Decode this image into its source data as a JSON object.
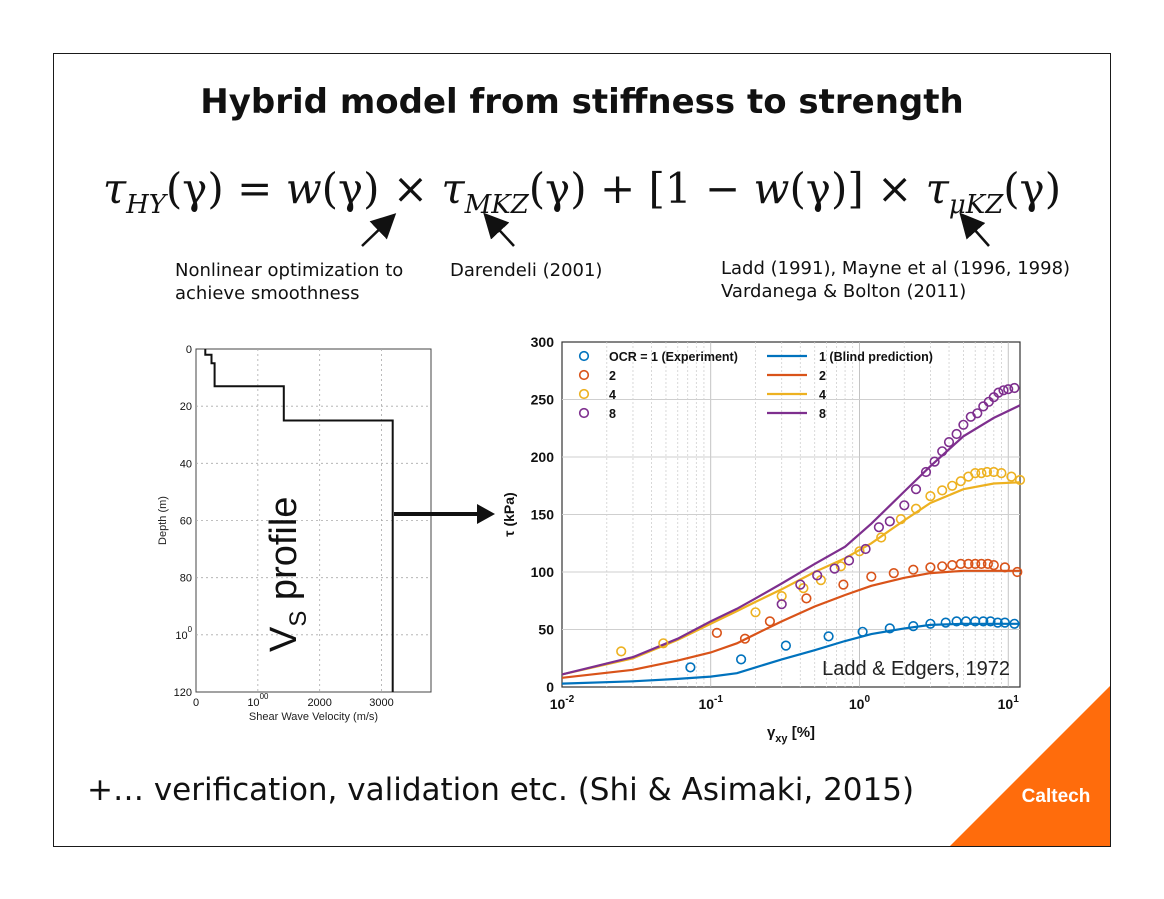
{
  "title": "Hybrid model from stiffness to strength",
  "equation": {
    "lhs": "τ",
    "lhs_sub": "HY",
    "lhs_arg": "(γ) = ",
    "w1": "w",
    "w1_arg": "(γ) × ",
    "tau2": "τ",
    "tau2_sub": "MKZ",
    "tau2_arg": "(γ) + [1 − ",
    "w2": "w",
    "w2_arg": "(γ)] × ",
    "tau3": "τ",
    "tau3_sub": "μKZ",
    "tau3_arg": "(γ)"
  },
  "notes": {
    "optimization_line1": "Nonlinear optimization to",
    "optimization_line2": "achieve smoothness",
    "darendeli": "Darendeli (2001)",
    "ladd_line1": "Ladd (1991), Mayne et al (1996, 1998)",
    "ladd_line2": "Vardanega & Bolton (2011)"
  },
  "footer": "+… verification, validation etc. (Shi & Asimaki, 2015)",
  "brand": {
    "label": "Caltech",
    "color": "#FF6C0C"
  },
  "vs_profile": {
    "overlay_main": "V",
    "overlay_sub": "S",
    "overlay_rest": " profile"
  },
  "chart_data": [
    {
      "type": "line",
      "xlabel": "Shear Wave Velocity (m/s)",
      "ylabel": "Depth (m)",
      "xlim": [
        0,
        3800
      ],
      "ylim": [
        0,
        120
      ],
      "y_inverted": true,
      "xticks": [
        "0",
        "1000",
        "2000",
        "3000"
      ],
      "yticks": [
        "0",
        "20",
        "40",
        "60",
        "80",
        "100",
        "120"
      ],
      "grid": true,
      "series": [
        {
          "x": [
            150,
            150,
            250,
            250,
            300,
            300,
            1420,
            1420,
            3180,
            3180
          ],
          "y": [
            0,
            2,
            2,
            5,
            5,
            13,
            13,
            25,
            25,
            120
          ]
        }
      ]
    },
    {
      "type": "scatter+line",
      "xlabel": "γxy [%]",
      "ylabel": "τ (kPa)",
      "x_scale": "log",
      "xlim": [
        0.01,
        12
      ],
      "ylim": [
        0,
        300
      ],
      "xticks": [
        "10-2",
        "10-1",
        "100",
        "101"
      ],
      "yticks": [
        "0",
        "50",
        "100",
        "150",
        "200",
        "250",
        "300"
      ],
      "grid": true,
      "legend_placement": "top-left",
      "annotation": "Ladd & Edgers, 1972",
      "legend": {
        "exp_title": "OCR = 1 (Experiment)",
        "pred_title": "1 (Blind prediction)",
        "labels": [
          "2",
          "4",
          "8"
        ]
      },
      "series": [
        {
          "name": "OCR = 1 (Experiment)",
          "color": "#0072BD",
          "kind": "markers",
          "x": [
            0.073,
            0.16,
            0.32,
            0.62,
            1.05,
            1.6,
            2.3,
            3.0,
            3.8,
            4.5,
            5.2,
            6.0,
            6.8,
            7.6,
            8.5,
            9.5,
            11
          ],
          "y": [
            17,
            24,
            36,
            44,
            48,
            51,
            53,
            55,
            56,
            57,
            57,
            57,
            57,
            57,
            56,
            56,
            55
          ]
        },
        {
          "name": "2",
          "color": "#D95319",
          "kind": "markers",
          "x": [
            0.11,
            0.17,
            0.25,
            0.44,
            0.78,
            1.2,
            1.7,
            2.3,
            3.0,
            3.6,
            4.2,
            4.8,
            5.4,
            6.0,
            6.6,
            7.3,
            8.0,
            9.5,
            11.5
          ],
          "y": [
            47,
            42,
            57,
            77,
            89,
            96,
            99,
            102,
            104,
            105,
            106,
            107,
            107,
            107,
            107,
            107,
            106,
            104,
            100
          ]
        },
        {
          "name": "4",
          "color": "#EDB120",
          "kind": "markers",
          "x": [
            0.025,
            0.048,
            0.2,
            0.3,
            0.42,
            0.55,
            0.75,
            1.0,
            1.4,
            1.9,
            2.4,
            3.0,
            3.6,
            4.2,
            4.8,
            5.4,
            6.0,
            6.6,
            7.2,
            8.0,
            9.0,
            10.5,
            12
          ],
          "y": [
            31,
            38,
            65,
            79,
            86,
            93,
            105,
            118,
            130,
            146,
            155,
            166,
            171,
            175,
            179,
            183,
            186,
            186,
            187,
            187,
            186,
            183,
            180
          ]
        },
        {
          "name": "8",
          "color": "#7E2F8E",
          "kind": "markers",
          "x": [
            0.3,
            0.4,
            0.52,
            0.68,
            0.85,
            1.1,
            1.35,
            1.6,
            2.0,
            2.4,
            2.8,
            3.2,
            3.6,
            4.0,
            4.5,
            5.0,
            5.6,
            6.2,
            6.8,
            7.4,
            8.0,
            8.6,
            9.3,
            10.0,
            11.0
          ],
          "y": [
            72,
            89,
            97,
            103,
            110,
            120,
            139,
            144,
            158,
            172,
            187,
            196,
            205,
            213,
            220,
            228,
            235,
            238,
            244,
            248,
            252,
            256,
            258,
            259,
            260
          ]
        },
        {
          "name": "1 (Blind prediction)",
          "color": "#0072BD",
          "kind": "line",
          "x": [
            0.01,
            0.03,
            0.06,
            0.1,
            0.15,
            0.2,
            0.3,
            0.5,
            0.8,
            1.2,
            2,
            3,
            5,
            8,
            12
          ],
          "y": [
            3,
            5,
            7,
            9,
            12,
            17,
            24,
            32,
            40,
            46,
            51,
            54,
            55,
            55,
            55
          ]
        },
        {
          "name": "2",
          "color": "#D95319",
          "kind": "line",
          "x": [
            0.01,
            0.03,
            0.06,
            0.1,
            0.15,
            0.2,
            0.3,
            0.5,
            0.8,
            1.2,
            2,
            3,
            5,
            8,
            12
          ],
          "y": [
            8,
            15,
            23,
            30,
            38,
            46,
            57,
            70,
            80,
            88,
            95,
            99,
            101,
            101,
            101
          ]
        },
        {
          "name": "4",
          "color": "#EDB120",
          "kind": "line",
          "x": [
            0.01,
            0.03,
            0.06,
            0.1,
            0.15,
            0.2,
            0.3,
            0.5,
            0.8,
            1.2,
            2,
            3,
            5,
            8,
            12
          ],
          "y": [
            11,
            25,
            41,
            55,
            66,
            74,
            85,
            100,
            112,
            125,
            145,
            160,
            172,
            177,
            178
          ]
        },
        {
          "name": "8",
          "color": "#7E2F8E",
          "kind": "line",
          "x": [
            0.01,
            0.03,
            0.06,
            0.1,
            0.15,
            0.2,
            0.3,
            0.5,
            0.8,
            1.2,
            2,
            3,
            5,
            8,
            12
          ],
          "y": [
            11,
            26,
            42,
            57,
            68,
            77,
            90,
            107,
            122,
            142,
            170,
            192,
            218,
            234,
            245
          ]
        }
      ]
    }
  ]
}
